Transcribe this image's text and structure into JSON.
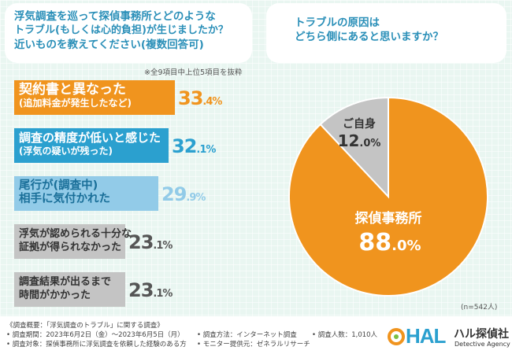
{
  "left_question": {
    "lines": [
      "浮気調査を巡って探偵事務所とどのような",
      "トラブル(もしくは心的負担)が生じましたか？",
      "近いものを教えてください(複数回答可)"
    ]
  },
  "right_question": {
    "lines": [
      "トラブルの原因は",
      "どちら側にあると思いますか？"
    ]
  },
  "note": "※全9項目中上位5項目を抜粋",
  "sample_size": "(n=542人)",
  "colors": {
    "orange": "#f0941e",
    "blue": "#2ba0cf",
    "lightblue": "#92cbe8",
    "gray": "#c4c4c4",
    "bg": "#e9f6f1"
  },
  "chart_data": [
    {
      "type": "bar",
      "orientation": "horizontal",
      "title": "浮気調査を巡って探偵事務所とどのようなトラブル(もしくは心的負担)が生じましたか？近いものを教えてください(複数回答可)",
      "categories": [
        {
          "line1": "契約書と異なった",
          "line2": "(追加料金が発生したなど)"
        },
        {
          "line1": "調査の精度が低いと感じた",
          "line2": "(浮気の疑いが残った)"
        },
        {
          "line1": "尾行が(調査中)",
          "line2": "相手に気付かれた"
        },
        {
          "line1": "浮気が認められる十分な",
          "line2": "証拠が得られなかった"
        },
        {
          "line1": "調査結果が出るまで",
          "line2": "時間がかかった"
        }
      ],
      "values": [
        33.4,
        32.1,
        29.9,
        23.1,
        23.1
      ],
      "labels": [
        {
          "int": "33",
          "dec": ".4%"
        },
        {
          "int": "32",
          "dec": ".1%"
        },
        {
          "int": "29",
          "dec": ".9%"
        },
        {
          "int": "23",
          "dec": ".1%"
        },
        {
          "int": "23",
          "dec": ".1%"
        }
      ],
      "bar_colors": [
        "#f0941e",
        "#2ba0cf",
        "#92cbe8",
        "#c4c4c4",
        "#c4c4c4"
      ],
      "xlim": [
        0,
        35
      ]
    },
    {
      "type": "pie",
      "title": "トラブルの原因はどちら側にあると思いますか？",
      "slices": [
        {
          "name": "探偵事務所",
          "value": 88.0,
          "int": "88",
          "dec": ".0%",
          "color": "#f0941e"
        },
        {
          "name": "ご自身",
          "value": 12.0,
          "int": "12",
          "dec": ".0%",
          "color": "#c4c4c4"
        }
      ]
    }
  ],
  "footer": {
    "overview": "《調査概要：「浮気調査のトラブル」に関する調査》",
    "period": "• 調査期間：2023年6月2日（金）～2023年6月5日（月）",
    "target": "• 調査対象：探偵事務所に浮気調査を依頼した経験のある方",
    "method": "• 調査方法：インターネット調査",
    "people": "• 調査人数：1,010人",
    "monitor": "• モニター提供元：ゼネラルリサーチ"
  },
  "logo": {
    "mark": "HAL",
    "name": "ハル探偵社",
    "sub": "Detective Agency"
  }
}
